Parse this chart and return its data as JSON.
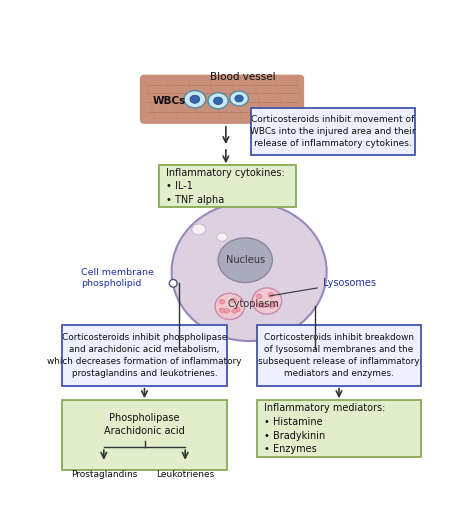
{
  "bg_color": "#ffffff",
  "box_blue_edge": "#4455aa",
  "box_blue_fill": "#eef0ff",
  "box_green_edge": "#88aa55",
  "box_green_fill": "#e0eecc",
  "text_color": "#111111",
  "blue_label_color": "#2233aa",
  "arrow_color": "#333333",
  "vessel_fill": "#c8907a",
  "vessel_line_color": "#aa6644",
  "cell_fill": "#ddd0e0",
  "cell_edge": "#9988bb",
  "nucleus_fill": "#aaaabc",
  "nucleus_edge": "#888899",
  "lyso_fill": "#f0c8d0",
  "lyso_edge": "#cc88aa",
  "lyso_dot_fill": "#ee99aa",
  "blob_fill": "#f5f0f5",
  "blob_edge": "#ccbbcc",
  "wbc_fill": "#c8e8f4",
  "wbc_edge": "#5588aa",
  "wbc_nucleus_fill": "#3366aa",
  "title": "Blood vessel",
  "wbc_label": "WBCs",
  "cortico_wbc_text": "Corticosteroids inhibit movement of\nWBCs into the injured area and their\nrelease of inflammatory cytokines.",
  "cytokines_text": "Inflammatory cytokines:\n• IL-1\n• TNF alpha",
  "cell_membrane_text": "Cell membrane\nphospholipid",
  "lysosomes_label": "Lysosomes",
  "nucleus_label": "Nucleus",
  "cytoplasm_label": "Cytoplasm",
  "cortico_phospho_text": "Corticosteroids inhibit phospholipase\nand arachidonic acid metabolism,\nwhich decreases formation of inflammatory\nprostaglandins and leukotrienes.",
  "cortico_lyso_text": "Corticosteroids inhibit breakdown\nof lysosomal membranes and the\nsubsequent release of inflammatory\nmediators and enzymes.",
  "phospholipase_text": "Phospholipase",
  "arachidonic_text": "Arachidonic acid",
  "prostaglandins_text": "Prostaglandins",
  "leukotrienes_text": "Leukotrienes",
  "mediators_text": "Inflammatory mediators:\n• Histamine\n• Bradykinin\n• Enzymes"
}
